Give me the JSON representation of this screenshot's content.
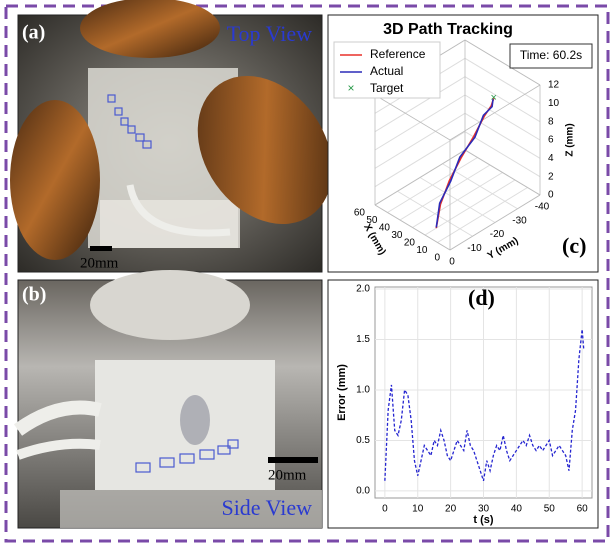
{
  "panels": {
    "a": {
      "label": "(a)",
      "caption": "Top View",
      "scale_bar": "20mm"
    },
    "b": {
      "label": "(b)",
      "caption": "Side View",
      "scale_bar": "20mm"
    }
  },
  "chart_data": [
    {
      "type": "line3d",
      "title": "3D Path Tracking",
      "panel_label": "(c)",
      "annotation": "Time: 60.2s",
      "xlabel": "X (mm)",
      "ylabel": "Y (mm)",
      "zlabel": "Z (mm)",
      "xlim": [
        0,
        60
      ],
      "ylim": [
        0,
        -40
      ],
      "zlim": [
        0,
        12
      ],
      "xticks": [
        0,
        10,
        20,
        30,
        40,
        50,
        60
      ],
      "yticks": [
        0,
        -10,
        -20,
        -30,
        -40
      ],
      "zticks": [
        0,
        2,
        4,
        6,
        8,
        10,
        12
      ],
      "series": [
        {
          "name": "Reference",
          "color": "#e8302a",
          "x": [
            20,
            22,
            22,
            20,
            17,
            14,
            12,
            10
          ],
          "y": [
            -5,
            -8,
            -12,
            -16,
            -20,
            -23,
            -25,
            -25
          ],
          "z": [
            0,
            2,
            4,
            6,
            8,
            10,
            11,
            12
          ]
        },
        {
          "name": "Actual",
          "color": "#2b2bb8",
          "x": [
            20.5,
            22.3,
            21.6,
            20.4,
            16.6,
            14.3,
            11.7,
            10.2
          ],
          "y": [
            -5.3,
            -7.8,
            -12.3,
            -15.7,
            -20.3,
            -22.8,
            -25.2,
            -24.8
          ],
          "z": [
            0,
            2.1,
            3.9,
            6.1,
            7.9,
            10.1,
            10.9,
            11.9
          ]
        }
      ],
      "target": {
        "name": "Target",
        "color": "#2a9a4a",
        "x": 10,
        "y": -25,
        "z": 12
      }
    },
    {
      "type": "line",
      "panel_label": "(d)",
      "xlabel": "t (s)",
      "ylabel": "Error (mm)",
      "xlim": [
        -3,
        63
      ],
      "ylim": [
        -0.07,
        2.02
      ],
      "xticks": [
        0,
        10,
        20,
        30,
        40,
        50,
        60
      ],
      "yticks": [
        {
          "value": 0,
          "label": "0.0"
        },
        {
          "value": 0.5,
          "label": "0.5"
        },
        {
          "value": 1,
          "label": "1.0"
        },
        {
          "value": 1.5,
          "label": "1.5"
        },
        {
          "value": 2,
          "label": "2.0"
        }
      ],
      "grid": true,
      "color": "#2424d0",
      "line_style": "dashed",
      "x": [
        0,
        1,
        2,
        3,
        4,
        5,
        6,
        7,
        8,
        9,
        10,
        11,
        12,
        13,
        14,
        15,
        16,
        17,
        18,
        19,
        20,
        21,
        22,
        23,
        24,
        25,
        26,
        27,
        28,
        29,
        30,
        31,
        32,
        33,
        34,
        35,
        36,
        37,
        38,
        39,
        40,
        41,
        42,
        43,
        44,
        45,
        46,
        47,
        48,
        49,
        50,
        51,
        52,
        53,
        54,
        55,
        56,
        57,
        58,
        59,
        60,
        60.5
      ],
      "values": [
        0.1,
        0.8,
        1.05,
        0.6,
        0.55,
        0.7,
        1.0,
        0.95,
        0.7,
        0.3,
        0.15,
        0.3,
        0.45,
        0.4,
        0.35,
        0.5,
        0.45,
        0.6,
        0.5,
        0.35,
        0.3,
        0.4,
        0.5,
        0.45,
        0.4,
        0.6,
        0.45,
        0.4,
        0.3,
        0.2,
        0.1,
        0.3,
        0.2,
        0.35,
        0.45,
        0.4,
        0.55,
        0.4,
        0.3,
        0.35,
        0.4,
        0.45,
        0.5,
        0.45,
        0.55,
        0.45,
        0.4,
        0.45,
        0.4,
        0.45,
        0.5,
        0.35,
        0.4,
        0.45,
        0.4,
        0.35,
        0.2,
        0.6,
        0.8,
        1.3,
        1.6,
        1.4
      ]
    }
  ]
}
